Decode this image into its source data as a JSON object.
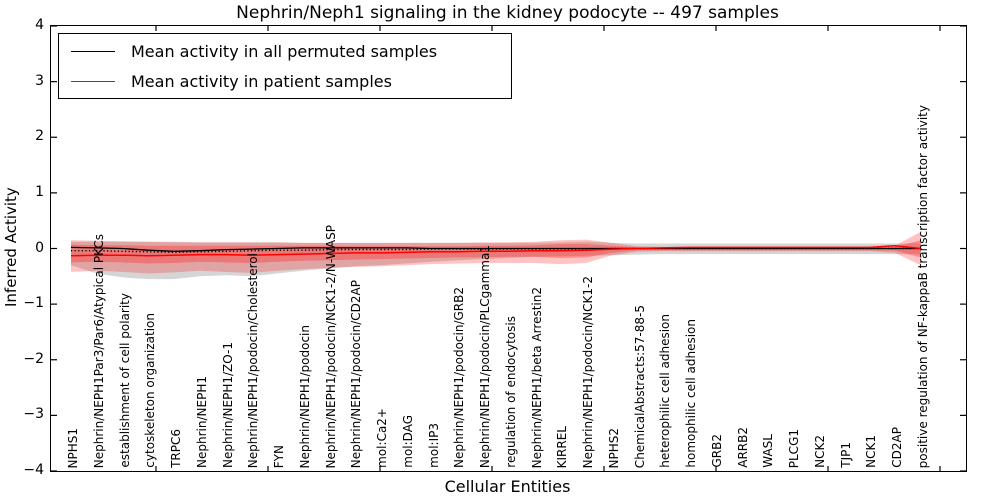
{
  "title": "Nephrin/Neph1 signaling in the kidney podocyte -- 497 samples",
  "xlabel": "Cellular Entities",
  "ylabel": "Inferred Activity",
  "legend": {
    "entries": [
      {
        "label": "Mean activity in all permuted samples",
        "color": "#000000"
      },
      {
        "label": "Mean activity in patient samples",
        "color": "#ff0000"
      }
    ]
  },
  "colors": {
    "permuted_line": "#000000",
    "patient_line": "#ff0000",
    "patient_band": "rgba(255,40,40,0.28)",
    "patient_band_inner": "rgba(255,40,40,0.36)",
    "permuted_band": "rgba(150,150,150,0.40)"
  },
  "chart_data": {
    "type": "line",
    "title": "Nephrin/Neph1 signaling in the kidney podocyte -- 497 samples",
    "xlabel": "Cellular Entities",
    "ylabel": "Inferred Activity",
    "ylim": [
      -4,
      4
    ],
    "ytick_labels": [
      "4",
      "3",
      "2",
      "1",
      "0",
      "−1",
      "−2",
      "−3",
      "−4"
    ],
    "grid": false,
    "legend_position": "upper left",
    "categories": [
      "NPHS1",
      "Nephrin/NEPH1Par3/Par6/Atypical PKCs",
      "establishment of cell polarity",
      "cytoskeleton organization",
      "TRPC6",
      "Nephrin/NEPH1",
      "Nephrin/NEPH1/ZO-1",
      "Nephrin/NEPH1/podocin/Cholesterol",
      "FYN",
      "Nephrin/NEPH1/podocin",
      "Nephrin/NEPH1/podocin/NCK1-2/N-WASP",
      "Nephrin/NEPH1/podocin/CD2AP",
      "mol:Ca2+",
      "mol:DAG",
      "mol:IP3",
      "Nephrin/NEPH1/podocin/GRB2",
      "Nephrin/NEPH1/podocin/PLCgamma1",
      "regulation of endocytosis",
      "Nephrin/NEPH1/beta Arrestin2",
      "KIRREL",
      "Nephrin/NEPH1/podocin/NCK1-2",
      "NPHS2",
      "ChemicalAbstracts:57-88-5",
      "heterophilic cell adhesion",
      "homophilic cell adhesion",
      "GRB2",
      "ARRB2",
      "WASL",
      "PLCG1",
      "NCK2",
      "TJP1",
      "NCK1",
      "CD2AP",
      "positive regulation of NF-kappaB transcription factor activity"
    ],
    "series": [
      {
        "name": "Mean activity in all permuted samples",
        "style": "solid-black",
        "values": [
          0.02,
          0.01,
          0.0,
          -0.03,
          -0.05,
          -0.04,
          -0.02,
          -0.01,
          0.0,
          0.01,
          0.01,
          0.01,
          0.01,
          0.01,
          0.0,
          0.0,
          0.0,
          0.0,
          0.0,
          0.0,
          0.0,
          0.0,
          0.0,
          0.0,
          0.0,
          0.0,
          0.0,
          0.0,
          0.0,
          0.0,
          0.0,
          0.0,
          0.0,
          0.0
        ]
      },
      {
        "name": "Permuted median (dotted)",
        "style": "dotted-black",
        "values": [
          -0.04,
          -0.04,
          -0.05,
          -0.06,
          -0.07,
          -0.06,
          -0.05,
          -0.04,
          -0.03,
          -0.03,
          -0.02,
          -0.02,
          -0.02,
          -0.02,
          -0.01,
          -0.01,
          -0.01,
          -0.01,
          -0.01,
          -0.01,
          -0.01,
          0.0,
          0.0,
          0.0,
          0.0,
          0.0,
          0.0,
          0.0,
          0.0,
          0.0,
          0.0,
          0.0,
          0.0,
          0.0
        ]
      },
      {
        "name": "Mean activity in patient samples",
        "style": "solid-red",
        "values": [
          -0.13,
          -0.12,
          -0.12,
          -0.13,
          -0.12,
          -0.11,
          -0.11,
          -0.12,
          -0.11,
          -0.1,
          -0.09,
          -0.08,
          -0.08,
          -0.07,
          -0.06,
          -0.06,
          -0.05,
          -0.05,
          -0.04,
          -0.04,
          -0.03,
          -0.01,
          0.0,
          0.01,
          0.02,
          0.02,
          0.02,
          0.02,
          0.02,
          0.02,
          0.02,
          0.02,
          0.05,
          0.0
        ]
      }
    ],
    "bands": [
      {
        "name": "permuted-spread-band",
        "color_key": "permuted_band",
        "top": [
          0.12,
          0.12,
          0.12,
          0.12,
          0.11,
          0.11,
          0.11,
          0.11,
          0.11,
          0.1,
          0.1,
          0.1,
          0.1,
          0.1,
          0.1,
          0.1,
          0.1,
          0.1,
          0.1,
          0.11,
          0.12,
          0.1,
          0.09,
          0.09,
          0.09,
          0.09,
          0.09,
          0.09,
          0.09,
          0.09,
          0.09,
          0.09,
          0.09,
          0.09
        ],
        "bottom": [
          -0.3,
          -0.45,
          -0.52,
          -0.55,
          -0.55,
          -0.5,
          -0.48,
          -0.5,
          -0.45,
          -0.4,
          -0.36,
          -0.32,
          -0.3,
          -0.27,
          -0.24,
          -0.21,
          -0.19,
          -0.17,
          -0.15,
          -0.14,
          -0.13,
          -0.12,
          -0.11,
          -0.1,
          -0.1,
          -0.1,
          -0.1,
          -0.1,
          -0.1,
          -0.1,
          -0.1,
          -0.1,
          -0.1,
          -0.1
        ]
      },
      {
        "name": "patient-spread-band-outer",
        "color_key": "patient_band",
        "top": [
          0.15,
          0.14,
          0.13,
          0.12,
          0.12,
          0.11,
          0.11,
          0.11,
          0.11,
          0.1,
          0.1,
          0.1,
          0.1,
          0.1,
          0.1,
          0.1,
          0.11,
          0.11,
          0.12,
          0.15,
          0.16,
          0.1,
          0.04,
          0.03,
          0.03,
          0.03,
          0.03,
          0.03,
          0.03,
          0.03,
          0.03,
          0.03,
          0.05,
          0.3
        ],
        "bottom": [
          -0.42,
          -0.4,
          -0.42,
          -0.45,
          -0.43,
          -0.4,
          -0.42,
          -0.44,
          -0.4,
          -0.37,
          -0.35,
          -0.33,
          -0.32,
          -0.3,
          -0.28,
          -0.27,
          -0.26,
          -0.26,
          -0.26,
          -0.28,
          -0.26,
          -0.12,
          -0.06,
          -0.05,
          -0.05,
          -0.05,
          -0.05,
          -0.05,
          -0.05,
          -0.05,
          -0.05,
          -0.05,
          -0.08,
          -0.3
        ]
      },
      {
        "name": "patient-spread-band-inner",
        "color_key": "patient_band_inner",
        "top": [
          0.07,
          0.06,
          0.06,
          0.05,
          0.05,
          0.05,
          0.05,
          0.05,
          0.05,
          0.05,
          0.05,
          0.04,
          0.04,
          0.04,
          0.04,
          0.04,
          0.05,
          0.05,
          0.06,
          0.08,
          0.08,
          0.05,
          0.02,
          0.02,
          0.02,
          0.02,
          0.02,
          0.02,
          0.02,
          0.02,
          0.02,
          0.02,
          0.03,
          0.15
        ],
        "bottom": [
          -0.25,
          -0.24,
          -0.25,
          -0.27,
          -0.26,
          -0.24,
          -0.25,
          -0.26,
          -0.24,
          -0.22,
          -0.21,
          -0.2,
          -0.19,
          -0.18,
          -0.17,
          -0.16,
          -0.16,
          -0.15,
          -0.15,
          -0.17,
          -0.16,
          -0.08,
          -0.03,
          -0.03,
          -0.03,
          -0.03,
          -0.03,
          -0.03,
          -0.03,
          -0.03,
          -0.03,
          -0.03,
          -0.04,
          -0.16
        ]
      }
    ]
  }
}
